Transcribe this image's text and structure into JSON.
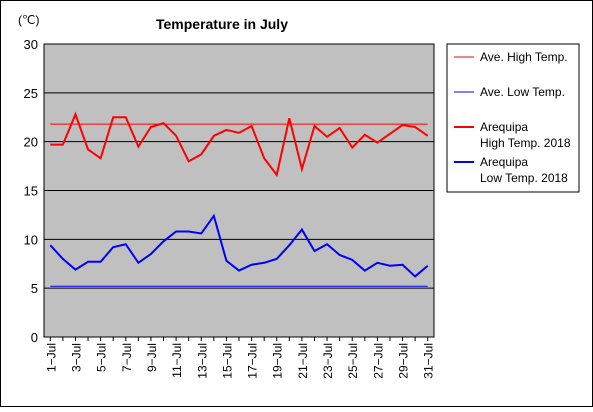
{
  "chart_data": {
    "type": "line",
    "title": "Temperature in July",
    "unit_label": "(℃)",
    "xlabel": "",
    "ylabel": "",
    "ylim": [
      0,
      30
    ],
    "y_ticks": [
      "0",
      "5",
      "10",
      "15",
      "20",
      "25",
      "30"
    ],
    "x_tick_labels": [
      "1−Jul",
      "3−Jul",
      "5−Jul",
      "7−Jul",
      "9−Jul",
      "11−Jul",
      "13−Jul",
      "15−Jul",
      "17−Jul",
      "19−Jul",
      "21−Jul",
      "23−Jul",
      "25−Jul",
      "27−Jul",
      "29−Jul",
      "31−Jul"
    ],
    "x_tick_days": [
      1,
      3,
      5,
      7,
      9,
      11,
      13,
      15,
      17,
      19,
      21,
      23,
      25,
      27,
      29,
      31
    ],
    "grid": true,
    "legend_position": "right",
    "series": [
      {
        "name": "Ave. High Temp.",
        "color": "#ff0000",
        "width": 1,
        "constant": 21.8
      },
      {
        "name": "Ave. Low Temp.",
        "color": "#0000ff",
        "width": 1,
        "constant": 5.2
      },
      {
        "name": "Arequipa High Temp. 2018",
        "legend_lines": [
          "Arequipa",
          "High Temp. 2018"
        ],
        "color": "#ff0000",
        "width": 2,
        "x": [
          1,
          2,
          3,
          4,
          5,
          6,
          7,
          8,
          9,
          10,
          11,
          12,
          13,
          14,
          15,
          16,
          17,
          18,
          19,
          20,
          21,
          22,
          23,
          24,
          25,
          26,
          27,
          28,
          29,
          30,
          31
        ],
        "values": [
          19.7,
          19.7,
          22.8,
          19.2,
          18.3,
          22.5,
          22.5,
          19.5,
          21.5,
          21.9,
          20.6,
          18.0,
          18.7,
          20.6,
          21.2,
          20.9,
          21.6,
          18.3,
          16.6,
          22.4,
          17.2,
          21.6,
          20.5,
          21.4,
          19.4,
          20.7,
          19.9,
          20.8,
          21.7,
          21.5,
          20.6
        ]
      },
      {
        "name": "Arequipa Low Temp. 2018",
        "legend_lines": [
          "Arequipa",
          "Low Temp. 2018"
        ],
        "color": "#0000ff",
        "width": 2,
        "x": [
          1,
          2,
          3,
          4,
          5,
          6,
          7,
          8,
          9,
          10,
          11,
          12,
          13,
          14,
          15,
          16,
          17,
          18,
          19,
          20,
          21,
          22,
          23,
          24,
          25,
          26,
          27,
          28,
          29,
          30,
          31
        ],
        "values": [
          9.4,
          8.0,
          6.9,
          7.7,
          7.7,
          9.2,
          9.5,
          7.6,
          8.5,
          9.8,
          10.8,
          10.8,
          10.6,
          12.4,
          7.8,
          6.8,
          7.4,
          7.6,
          8.0,
          9.4,
          11.0,
          8.8,
          9.5,
          8.4,
          7.9,
          6.8,
          7.6,
          7.3,
          7.4,
          6.2,
          7.3
        ]
      }
    ]
  }
}
